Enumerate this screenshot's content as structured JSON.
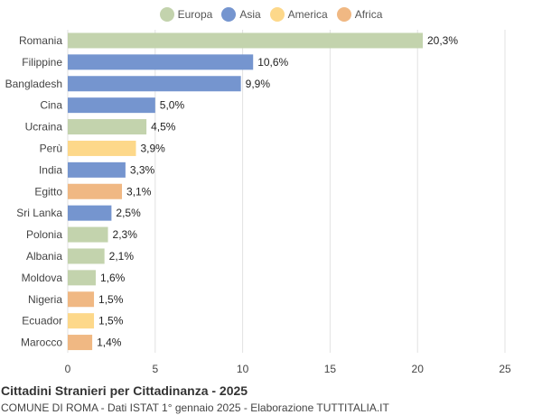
{
  "chart_data": {
    "type": "bar",
    "orientation": "horizontal",
    "title": "Cittadini Stranieri per Cittadinanza - 2025",
    "subtitle": "COMUNE DI ROMA - Dati ISTAT 1° gennaio 2025 - Elaborazione TUTTITALIA.IT",
    "xlim": [
      0,
      25
    ],
    "xticks": [
      0,
      5,
      10,
      15,
      20,
      25
    ],
    "grid": true,
    "legend_position": "top",
    "legend": [
      {
        "name": "Europa",
        "color": "#c3d3ad"
      },
      {
        "name": "Asia",
        "color": "#7595cf"
      },
      {
        "name": "America",
        "color": "#fdd88a"
      },
      {
        "name": "Africa",
        "color": "#f0b883"
      }
    ],
    "bars": [
      {
        "category": "Romania",
        "value": 20.3,
        "label": "20,3%",
        "group": "Europa"
      },
      {
        "category": "Filippine",
        "value": 10.6,
        "label": "10,6%",
        "group": "Asia"
      },
      {
        "category": "Bangladesh",
        "value": 9.9,
        "label": "9,9%",
        "group": "Asia"
      },
      {
        "category": "Cina",
        "value": 5.0,
        "label": "5,0%",
        "group": "Asia"
      },
      {
        "category": "Ucraina",
        "value": 4.5,
        "label": "4,5%",
        "group": "Europa"
      },
      {
        "category": "Perù",
        "value": 3.9,
        "label": "3,9%",
        "group": "America"
      },
      {
        "category": "India",
        "value": 3.3,
        "label": "3,3%",
        "group": "Asia"
      },
      {
        "category": "Egitto",
        "value": 3.1,
        "label": "3,1%",
        "group": "Africa"
      },
      {
        "category": "Sri Lanka",
        "value": 2.5,
        "label": "2,5%",
        "group": "Asia"
      },
      {
        "category": "Polonia",
        "value": 2.3,
        "label": "2,3%",
        "group": "Europa"
      },
      {
        "category": "Albania",
        "value": 2.1,
        "label": "2,1%",
        "group": "Europa"
      },
      {
        "category": "Moldova",
        "value": 1.6,
        "label": "1,6%",
        "group": "Europa"
      },
      {
        "category": "Nigeria",
        "value": 1.5,
        "label": "1,5%",
        "group": "Africa"
      },
      {
        "category": "Ecuador",
        "value": 1.5,
        "label": "1,5%",
        "group": "America"
      },
      {
        "category": "Marocco",
        "value": 1.4,
        "label": "1,4%",
        "group": "Africa"
      }
    ]
  }
}
